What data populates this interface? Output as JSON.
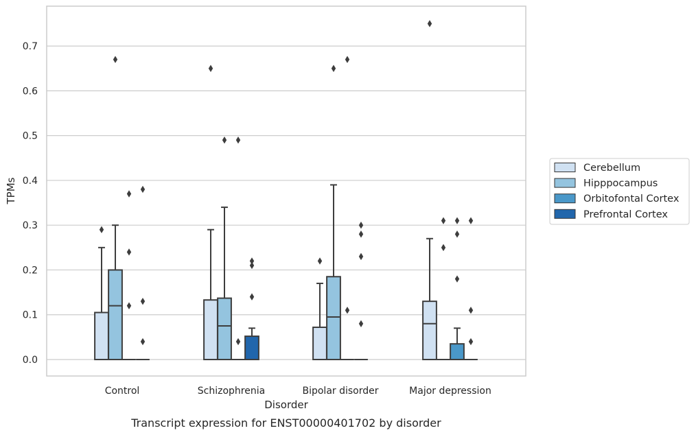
{
  "caption": "Transcript expression for ENST00000401702 by disorder",
  "chart_data": {
    "type": "box",
    "xlabel": "Disorder",
    "ylabel": "TPMs",
    "ylim": [
      -0.036,
      0.79
    ],
    "yticks": [
      0.0,
      0.1,
      0.2,
      0.3,
      0.4,
      0.5,
      0.6,
      0.7
    ],
    "ytick_labels": [
      "0.0",
      "0.1",
      "0.2",
      "0.3",
      "0.4",
      "0.5",
      "0.6",
      "0.7"
    ],
    "grid": "horizontal",
    "legend_position": "right",
    "categories": [
      "Control",
      "Schizophrenia",
      "Bipolar disorder",
      "Major depression"
    ],
    "series": [
      {
        "name": "Cerebellum",
        "color": "#d0e1f2",
        "boxes": [
          {
            "q1": 0,
            "median": 0,
            "q3": 0.105,
            "whisker_low": 0,
            "whisker_high": 0.25,
            "outliers": [
              0.29
            ]
          },
          {
            "q1": 0,
            "median": 0,
            "q3": 0.133,
            "whisker_low": 0,
            "whisker_high": 0.29,
            "outliers": [
              0.65
            ]
          },
          {
            "q1": 0,
            "median": 0,
            "q3": 0.072,
            "whisker_low": 0,
            "whisker_high": 0.17,
            "outliers": [
              0.22
            ]
          },
          {
            "q1": 0,
            "median": 0.08,
            "q3": 0.13,
            "whisker_low": 0,
            "whisker_high": 0.27,
            "outliers": [
              0.75
            ]
          }
        ]
      },
      {
        "name": "Hipppocampus",
        "color": "#94c4df",
        "boxes": [
          {
            "q1": 0,
            "median": 0.12,
            "q3": 0.2,
            "whisker_low": 0,
            "whisker_high": 0.3,
            "outliers": [
              0.67
            ]
          },
          {
            "q1": 0,
            "median": 0.075,
            "q3": 0.137,
            "whisker_low": 0,
            "whisker_high": 0.34,
            "outliers": [
              0.49
            ]
          },
          {
            "q1": 0,
            "median": 0.095,
            "q3": 0.185,
            "whisker_low": 0,
            "whisker_high": 0.39,
            "outliers": [
              0.65
            ]
          },
          {
            "q1": 0,
            "median": 0,
            "q3": 0,
            "whisker_low": 0,
            "whisker_high": 0,
            "outliers": [
              0.25,
              0.31
            ]
          }
        ]
      },
      {
        "name": "Orbitofontal Cortex",
        "color": "#4a98c9",
        "boxes": [
          {
            "q1": 0,
            "median": 0,
            "q3": 0,
            "whisker_low": 0,
            "whisker_high": 0,
            "outliers": [
              0.12,
              0.24,
              0.37
            ]
          },
          {
            "q1": 0,
            "median": 0,
            "q3": 0,
            "whisker_low": 0,
            "whisker_high": 0,
            "outliers": [
              0.04,
              0.49
            ]
          },
          {
            "q1": 0,
            "median": 0,
            "q3": 0,
            "whisker_low": 0,
            "whisker_high": 0,
            "outliers": [
              0.11,
              0.67
            ]
          },
          {
            "q1": 0,
            "median": 0,
            "q3": 0.035,
            "whisker_low": 0,
            "whisker_high": 0.07,
            "outliers": [
              0.18,
              0.28,
              0.31
            ]
          }
        ]
      },
      {
        "name": "Prefrontal Cortex",
        "color": "#2166ac",
        "boxes": [
          {
            "q1": 0,
            "median": 0,
            "q3": 0,
            "whisker_low": 0,
            "whisker_high": 0,
            "outliers": [
              0.04,
              0.13,
              0.38
            ]
          },
          {
            "q1": 0,
            "median": 0,
            "q3": 0.052,
            "whisker_low": 0,
            "whisker_high": 0.07,
            "outliers": [
              0.14,
              0.21,
              0.22
            ]
          },
          {
            "q1": 0,
            "median": 0,
            "q3": 0,
            "whisker_low": 0,
            "whisker_high": 0,
            "outliers": [
              0.08,
              0.23,
              0.28,
              0.3
            ]
          },
          {
            "q1": 0,
            "median": 0,
            "q3": 0,
            "whisker_low": 0,
            "whisker_high": 0,
            "outliers": [
              0.04,
              0.11,
              0.31
            ]
          }
        ]
      }
    ]
  }
}
